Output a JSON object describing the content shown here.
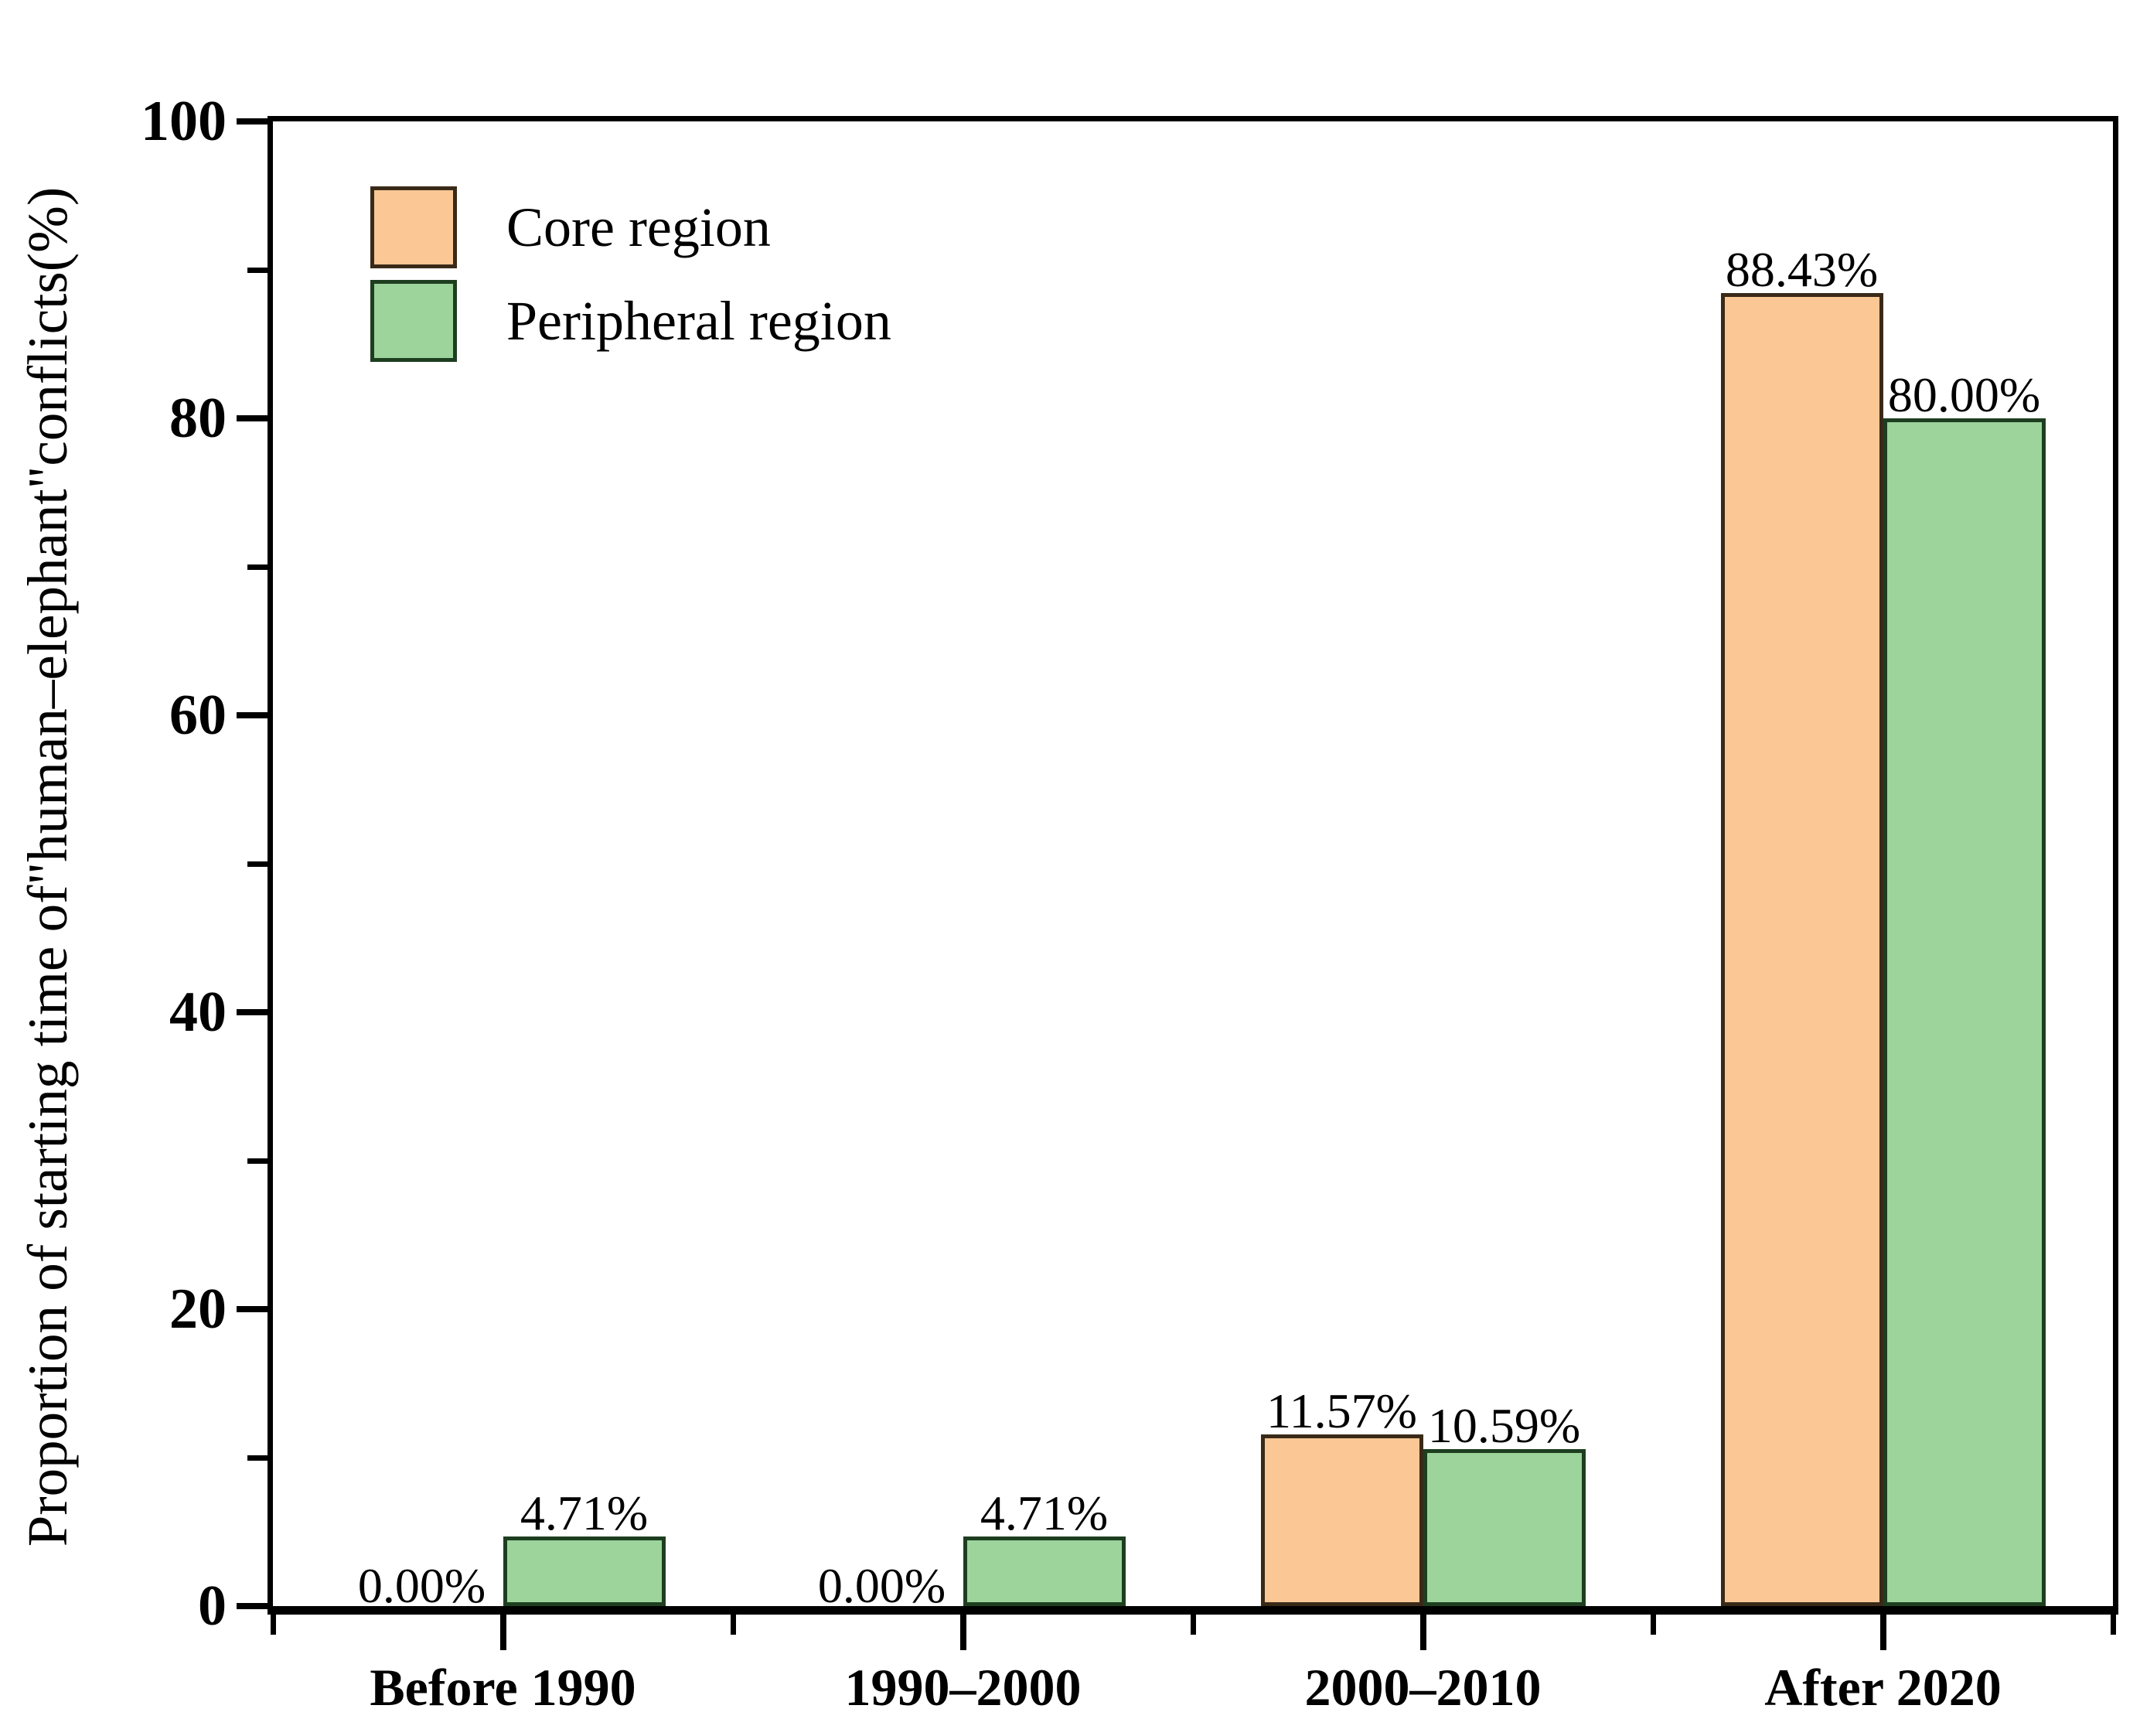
{
  "chart_data": {
    "type": "bar",
    "title": "",
    "categories": [
      "Before 1990",
      "1990–2000",
      "2000–2010",
      "After 2020"
    ],
    "series": [
      {
        "name": "Core region",
        "fill_color": "#FAC795",
        "border_color": "#392A18",
        "values": [
          0,
          0,
          11.57,
          88.43
        ],
        "value_labels": [
          "0.00%",
          "0.00%",
          "11.57%",
          "88.43%"
        ]
      },
      {
        "name": "Peripheral region",
        "fill_color": "#9CD49C",
        "border_color": "#1E3E20",
        "values": [
          4.71,
          4.71,
          10.59,
          80.0
        ],
        "value_labels": [
          "4.71%",
          "4.71%",
          "10.59%",
          "80.00%"
        ]
      }
    ],
    "xlabel": "",
    "ylabel": "Proportion of starting time of\"human–elephant\"conflicts(%)",
    "ylim": [
      0,
      100
    ],
    "yticks_major": [
      0,
      20,
      40,
      60,
      80,
      100
    ],
    "yticks_minor": [
      10,
      30,
      50,
      70,
      90
    ],
    "legend_position": "top-left",
    "grid": false,
    "axis_color": "#000000",
    "background_color": "#ffffff"
  }
}
